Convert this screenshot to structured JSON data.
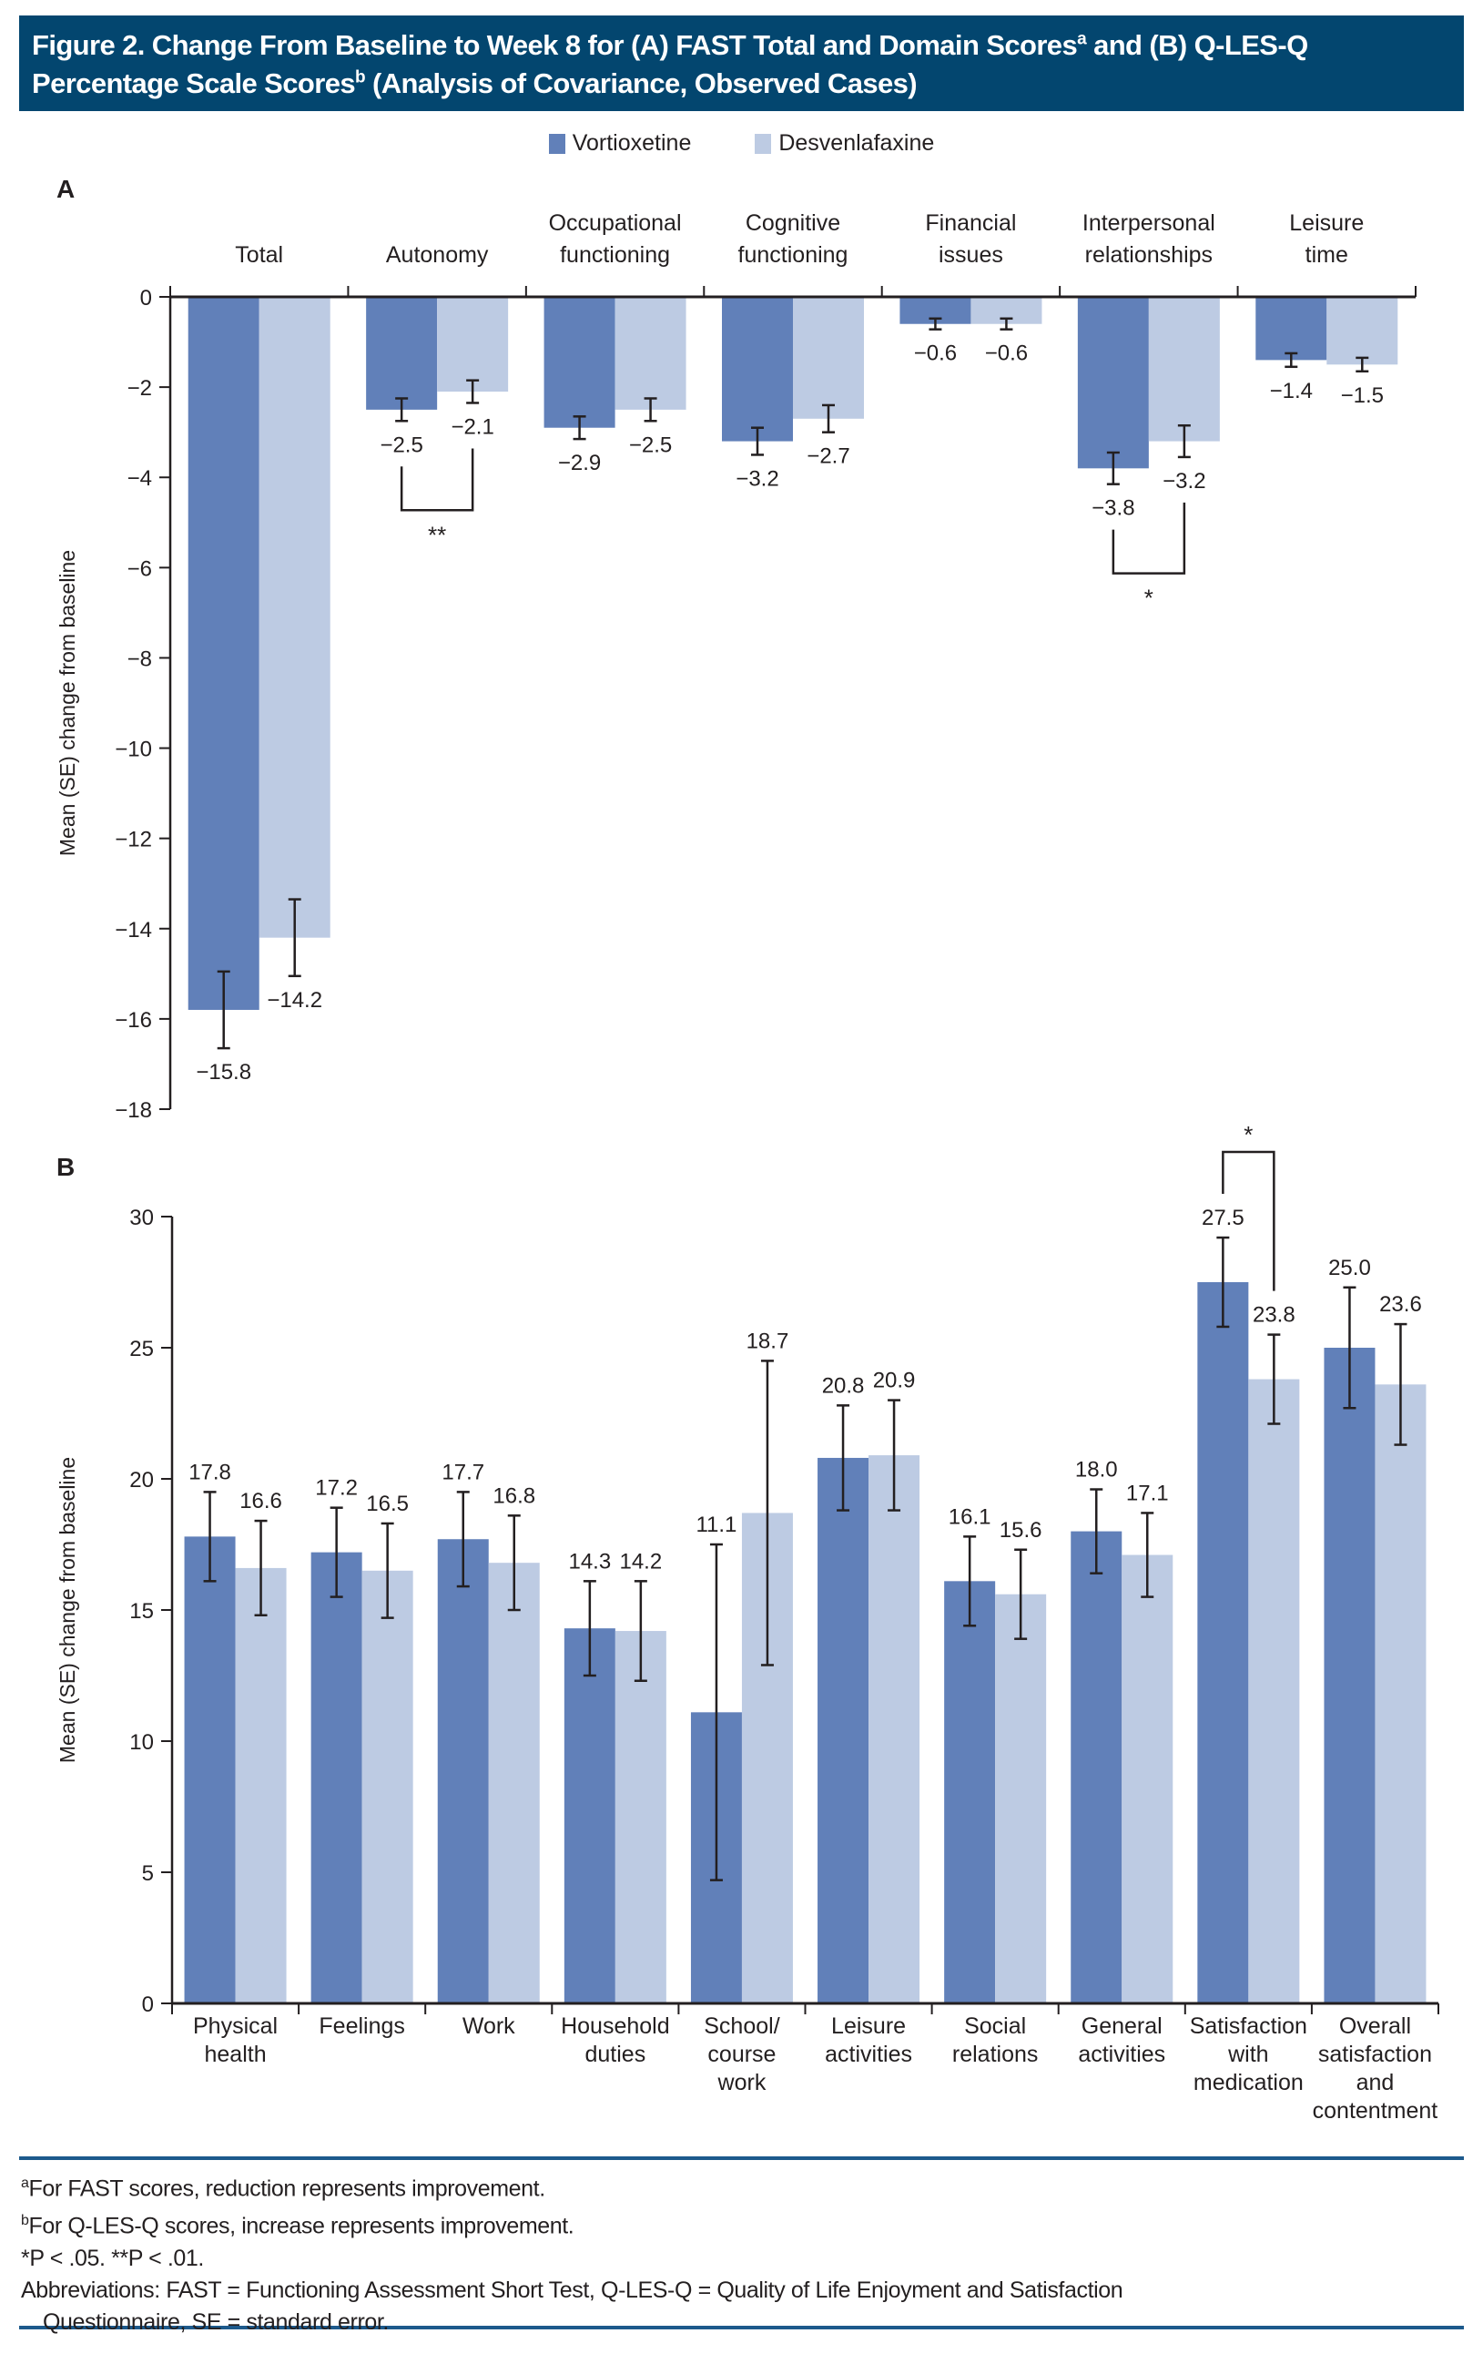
{
  "title": {
    "line1_pre": "Figure 2. Change From Baseline to Week 8 for (A) FAST Total and Domain Scores",
    "sup_a": "a",
    "line1_post": " and (B) Q-LES-Q",
    "line2_pre": "Percentage Scale Scores",
    "sup_b": "b",
    "line2_post": " (Analysis of Covariance, Observed Cases)"
  },
  "legend": [
    {
      "label": "Vortioxetine",
      "color": "#6180b9"
    },
    {
      "label": "Desvenlafaxine",
      "color": "#bdcbe3"
    }
  ],
  "chart_data": [
    {
      "panel": "A",
      "type": "bar",
      "ylabel": "Mean (SE) change from baseline",
      "ylim": [
        -18,
        0
      ],
      "yticks": [
        0,
        -2,
        -4,
        -6,
        -8,
        -10,
        -12,
        -14,
        -16,
        -18
      ],
      "ytick_labels": [
        "0",
        "−2",
        "−4",
        "−6",
        "−8",
        "−10",
        "−12",
        "−14",
        "−16",
        "−18"
      ],
      "category_position": "top",
      "categories": [
        [
          "Total"
        ],
        [
          "Autonomy"
        ],
        [
          "Occupational",
          "functioning"
        ],
        [
          "Cognitive",
          "functioning"
        ],
        [
          "Financial",
          "issues"
        ],
        [
          "Interpersonal",
          "relationships"
        ],
        [
          "Leisure",
          "time"
        ]
      ],
      "series": [
        {
          "name": "Vortioxetine",
          "color": "#6180b9",
          "values": [
            -15.8,
            -2.5,
            -2.9,
            -3.2,
            -0.6,
            -3.8,
            -1.4
          ],
          "labels": [
            "−15.8",
            "−2.5",
            "−2.9",
            "−3.2",
            "−0.6",
            "−3.8",
            "−1.4"
          ],
          "se": [
            0.85,
            0.25,
            0.25,
            0.3,
            0.12,
            0.35,
            0.15
          ]
        },
        {
          "name": "Desvenlafaxine",
          "color": "#bdcbe3",
          "values": [
            -14.2,
            -2.1,
            -2.5,
            -2.7,
            -0.6,
            -3.2,
            -1.5
          ],
          "labels": [
            "−14.2",
            "−2.1",
            "−2.5",
            "−2.7",
            "−0.6",
            "−3.2",
            "−1.5"
          ],
          "se": [
            0.85,
            0.25,
            0.25,
            0.3,
            0.12,
            0.35,
            0.15
          ]
        }
      ],
      "significance": [
        {
          "category_index": 1,
          "marker": "**"
        },
        {
          "category_index": 5,
          "marker": "*"
        }
      ],
      "grid": false
    },
    {
      "panel": "B",
      "type": "bar",
      "ylabel": "Mean (SE) change from baseline",
      "ylim": [
        0,
        30
      ],
      "yticks": [
        0,
        5,
        10,
        15,
        20,
        25,
        30
      ],
      "ytick_labels": [
        "0",
        "5",
        "10",
        "15",
        "20",
        "25",
        "30"
      ],
      "category_position": "bottom",
      "categories": [
        [
          "Physical",
          "health"
        ],
        [
          "Feelings"
        ],
        [
          "Work"
        ],
        [
          "Household",
          "duties"
        ],
        [
          "School/",
          "course",
          "work"
        ],
        [
          "Leisure",
          "activities"
        ],
        [
          "Social",
          "relations"
        ],
        [
          "General",
          "activities"
        ],
        [
          "Satisfaction",
          "with",
          "medication"
        ],
        [
          "Overall",
          "satisfaction",
          "and",
          "contentment"
        ]
      ],
      "series": [
        {
          "name": "Vortioxetine",
          "color": "#6180b9",
          "values": [
            17.8,
            17.2,
            17.7,
            14.3,
            11.1,
            20.8,
            16.1,
            18.0,
            27.5,
            25.0
          ],
          "labels": [
            "17.8",
            "17.2",
            "17.7",
            "14.3",
            "11.1",
            "20.8",
            "16.1",
            "18.0",
            "27.5",
            "25.0"
          ],
          "se": [
            1.7,
            1.7,
            1.8,
            1.8,
            6.4,
            2.0,
            1.7,
            1.6,
            1.7,
            2.3
          ]
        },
        {
          "name": "Desvenlafaxine",
          "color": "#bdcbe3",
          "values": [
            16.6,
            16.5,
            16.8,
            14.2,
            18.7,
            20.9,
            15.6,
            17.1,
            23.8,
            23.6
          ],
          "labels": [
            "16.6",
            "16.5",
            "16.8",
            "14.2",
            "18.7",
            "20.9",
            "15.6",
            "17.1",
            "23.8",
            "23.6"
          ],
          "se": [
            1.8,
            1.8,
            1.8,
            1.9,
            5.8,
            2.1,
            1.7,
            1.6,
            1.7,
            2.3
          ]
        }
      ],
      "significance": [
        {
          "category_index": 8,
          "marker": "*"
        }
      ],
      "grid": false
    }
  ],
  "panel_labels": {
    "a": "A",
    "b": "B"
  },
  "footnotes": {
    "a_sup": "a",
    "a_text": "For FAST scores, reduction represents improvement.",
    "b_sup": "b",
    "b_text": "For Q-LES-Q scores, increase represents improvement.",
    "p_values": "*P < .05.   **P < .01.",
    "abbrev_line1": "Abbreviations: FAST = Functioning Assessment Short Test, Q-LES-Q = Quality of Life Enjoyment and Satisfaction",
    "abbrev_line2": "Questionnaire, SE = standard error."
  }
}
